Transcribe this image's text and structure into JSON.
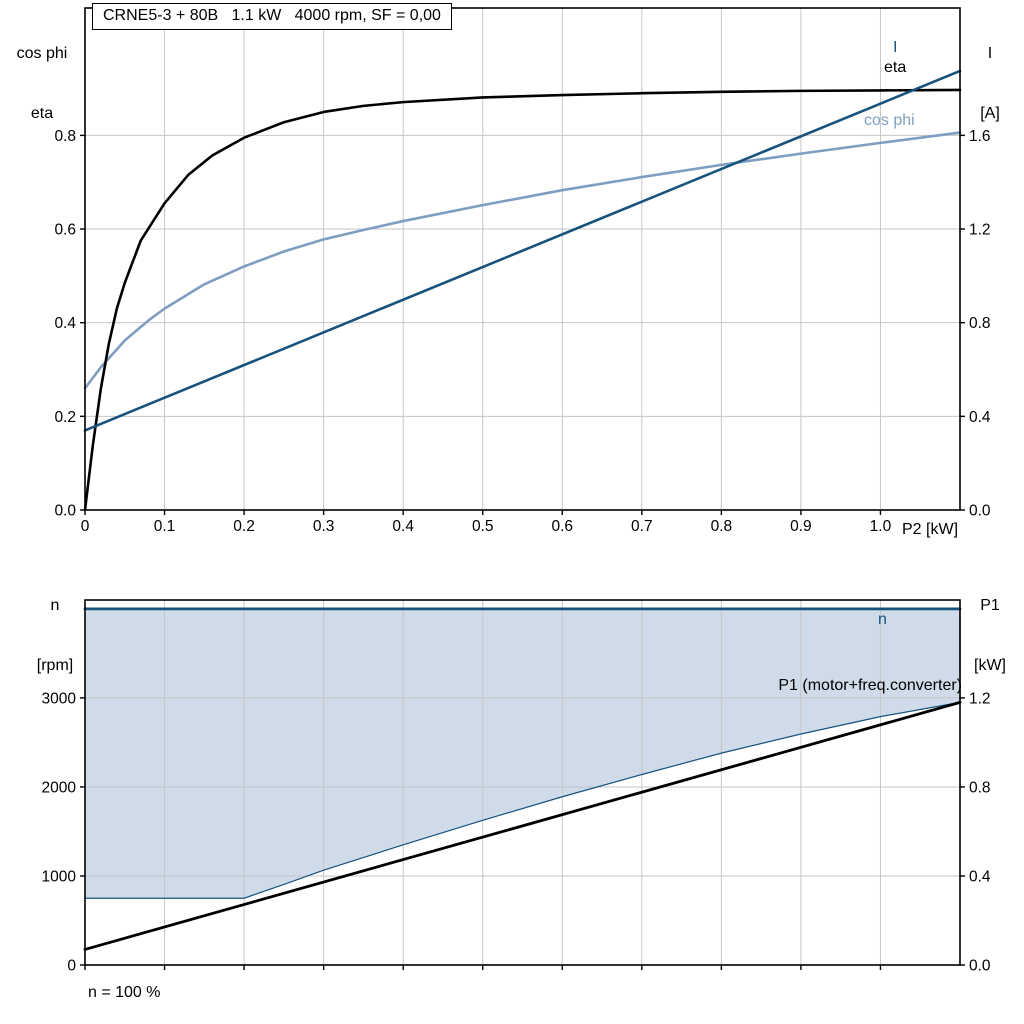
{
  "title_box": "CRNE5-3 + 80B   1.1 kW   4000 rpm, SF = 0,00",
  "footnote": "n = 100 %",
  "colors": {
    "black": "#000000",
    "dark_blue": "#17527D",
    "light_blue": "#7E9EC1",
    "fill": "#CFDBE9",
    "grid": "#C6C6C6"
  },
  "chart_data": [
    {
      "type": "line",
      "title": "CRNE5-3 + 80B   1.1 kW   4000 rpm, SF = 0,00",
      "xlabel": "P2 [kW]",
      "xlim": [
        0,
        1.1
      ],
      "x_ticks": [
        [
          0,
          "0"
        ],
        [
          0.1,
          "0.1"
        ],
        [
          0.2,
          "0.2"
        ],
        [
          0.3,
          "0.3"
        ],
        [
          0.4,
          "0.4"
        ],
        [
          0.5,
          "0.5"
        ],
        [
          0.6,
          "0.6"
        ],
        [
          0.7,
          "0.7"
        ],
        [
          0.8,
          "0.8"
        ],
        [
          0.9,
          "0.9"
        ],
        [
          1.0,
          "1.0"
        ]
      ],
      "left_axis": {
        "label_lines": [
          "cos phi",
          "eta"
        ],
        "lim": [
          0,
          1.072
        ],
        "ticks": [
          [
            0,
            "0.0"
          ],
          [
            0.2,
            "0.2"
          ],
          [
            0.4,
            "0.4"
          ],
          [
            0.6,
            "0.6"
          ],
          [
            0.8,
            "0.8"
          ]
        ]
      },
      "right_axis": {
        "label_lines": [
          "I",
          "[A]"
        ],
        "lim": [
          0,
          2.144
        ],
        "ticks": [
          [
            0,
            "0.0"
          ],
          [
            0.4,
            "0.4"
          ],
          [
            0.8,
            "0.8"
          ],
          [
            1.2,
            "1.2"
          ],
          [
            1.6,
            "1.6"
          ]
        ]
      },
      "series": [
        {
          "name": "cos_phi",
          "label": "cos phi",
          "axis": "left",
          "color_key": "light_blue",
          "points": [
            [
              0,
              0.26
            ],
            [
              0.02,
              0.305
            ],
            [
              0.05,
              0.362
            ],
            [
              0.08,
              0.405
            ],
            [
              0.1,
              0.43
            ],
            [
              0.15,
              0.482
            ],
            [
              0.2,
              0.52
            ],
            [
              0.25,
              0.552
            ],
            [
              0.3,
              0.578
            ],
            [
              0.35,
              0.598
            ],
            [
              0.4,
              0.617
            ],
            [
              0.5,
              0.651
            ],
            [
              0.6,
              0.683
            ],
            [
              0.7,
              0.711
            ],
            [
              0.8,
              0.737
            ],
            [
              0.9,
              0.761
            ],
            [
              1.0,
              0.784
            ],
            [
              1.1,
              0.806
            ]
          ]
        },
        {
          "name": "eta",
          "label": "eta",
          "axis": "left",
          "color_key": "black",
          "points": [
            [
              0,
              0
            ],
            [
              0.01,
              0.14
            ],
            [
              0.02,
              0.26
            ],
            [
              0.03,
              0.355
            ],
            [
              0.04,
              0.43
            ],
            [
              0.05,
              0.485
            ],
            [
              0.07,
              0.575
            ],
            [
              0.1,
              0.655
            ],
            [
              0.13,
              0.716
            ],
            [
              0.16,
              0.757
            ],
            [
              0.2,
              0.795
            ],
            [
              0.25,
              0.828
            ],
            [
              0.3,
              0.85
            ],
            [
              0.35,
              0.863
            ],
            [
              0.4,
              0.871
            ],
            [
              0.5,
              0.881
            ],
            [
              0.6,
              0.886
            ],
            [
              0.7,
              0.89
            ],
            [
              0.8,
              0.893
            ],
            [
              0.9,
              0.895
            ],
            [
              1.0,
              0.896
            ],
            [
              1.1,
              0.897
            ]
          ]
        },
        {
          "name": "I",
          "label": "I",
          "axis": "right",
          "color_key": "dark_blue",
          "points": [
            [
              0,
              0.34
            ],
            [
              1.1,
              1.875
            ]
          ]
        }
      ]
    },
    {
      "type": "line",
      "title": "",
      "xlabel": "",
      "xlim": [
        0,
        1.1
      ],
      "x_ticks": [
        [
          0,
          ""
        ],
        [
          0.1,
          ""
        ],
        [
          0.2,
          ""
        ],
        [
          0.3,
          ""
        ],
        [
          0.4,
          ""
        ],
        [
          0.5,
          ""
        ],
        [
          0.6,
          ""
        ],
        [
          0.7,
          ""
        ],
        [
          0.8,
          ""
        ],
        [
          0.9,
          ""
        ],
        [
          1.0,
          ""
        ]
      ],
      "left_axis": {
        "label_lines": [
          "n",
          "[rpm]"
        ],
        "lim": [
          0,
          4100
        ],
        "ticks": [
          [
            0,
            "0"
          ],
          [
            1000,
            "1000"
          ],
          [
            2000,
            "2000"
          ],
          [
            3000,
            "3000"
          ]
        ]
      },
      "right_axis": {
        "label_lines": [
          "P1",
          "[kW]"
        ],
        "lim": [
          0,
          1.64
        ],
        "ticks": [
          [
            0,
            "0.0"
          ],
          [
            0.4,
            "0.4"
          ],
          [
            0.8,
            "0.8"
          ],
          [
            1.2,
            "1.2"
          ]
        ]
      },
      "band": {
        "upper_rpm": 4000,
        "lower": [
          [
            0,
            750
          ],
          [
            0.2,
            750
          ],
          [
            0.25,
            905
          ],
          [
            0.3,
            1065
          ],
          [
            0.4,
            1350
          ],
          [
            0.5,
            1625
          ],
          [
            0.6,
            1890
          ],
          [
            0.7,
            2140
          ],
          [
            0.8,
            2380
          ],
          [
            0.9,
            2595
          ],
          [
            1.0,
            2790
          ],
          [
            1.1,
            2950
          ],
          [
            1.1,
            4000
          ]
        ]
      },
      "series": [
        {
          "name": "n",
          "label": "n",
          "axis": "left",
          "color_key": "dark_blue",
          "width": 2.8,
          "points": [
            [
              0,
              4000
            ],
            [
              1.1,
              4000
            ]
          ]
        },
        {
          "name": "P1",
          "label": "P1 (motor+freq.converter)",
          "axis": "right",
          "color_key": "black",
          "width": 2.8,
          "points": [
            [
              0,
              0.07
            ],
            [
              1.1,
              1.18
            ]
          ]
        }
      ]
    }
  ]
}
